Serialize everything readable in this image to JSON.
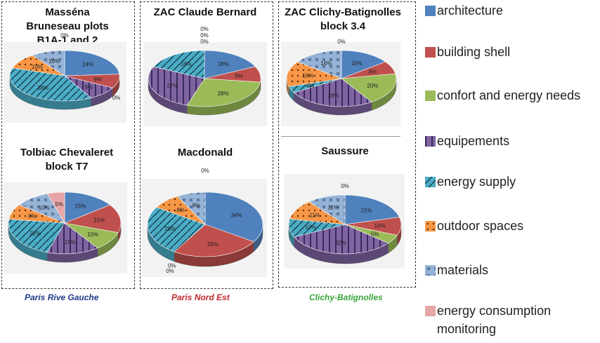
{
  "group_labels": [
    {
      "text": "Paris Rive Gauche",
      "color": "#1f3a8a"
    },
    {
      "text": "Paris Nord Est",
      "color": "#c0272d"
    },
    {
      "text": "Clichy-Batignolles",
      "color": "#3aa53a"
    }
  ],
  "legend": [
    {
      "label": "architecture",
      "color": "#4f81bd",
      "pattern": "solid"
    },
    {
      "label": " building shell",
      "color": "#c0504d",
      "pattern": "solid"
    },
    {
      "label": " confort and energy needs",
      "color": "#9bbb59",
      "pattern": "solid"
    },
    {
      "label": "equipements",
      "color": "#8064a2",
      "pattern": "vlines"
    },
    {
      "label": "energy supply",
      "color": "#4bacc6",
      "pattern": "slash"
    },
    {
      "label": "outdoor spaces",
      "color": "#f79646",
      "pattern": "dots"
    },
    {
      "label": "materials",
      "color": "#95b3d7",
      "pattern": "cross"
    },
    {
      "label": "energy consumption monitoring",
      "color": "#e6a6a6",
      "pattern": "solid"
    }
  ],
  "chart_data": [
    {
      "type": "pie",
      "title": "Masséna Bruneseau plots B1A-1 and 2",
      "categories": [
        "architecture",
        "building shell",
        "confort and energy needs",
        "equipements",
        "energy supply",
        "outdoor spaces",
        "materials",
        "energy consumption monitoring"
      ],
      "values": [
        24,
        9,
        0,
        9,
        38,
        10,
        10,
        0
      ],
      "labels": [
        "24%",
        "9%",
        "0%",
        "9%",
        "38%",
        "10%",
        "10%",
        "0%"
      ]
    },
    {
      "type": "pie",
      "title": "ZAC Claude Bernard",
      "categories": [
        "architecture",
        "building shell",
        "confort and energy needs",
        "equipements",
        "energy supply",
        "outdoor spaces",
        "materials",
        "energy consumption monitoring"
      ],
      "values": [
        18,
        9,
        28,
        27,
        18,
        0,
        0,
        0
      ],
      "labels": [
        "18%",
        "9%",
        "28%",
        "27%",
        "18%",
        "0%",
        "0%",
        "0%"
      ]
    },
    {
      "type": "pie",
      "title": "ZAC Clichy-Batignolles block 3.4",
      "categories": [
        "architecture",
        "building shell",
        "confort and energy needs",
        "equipements",
        "energy supply",
        "outdoor spaces",
        "materials",
        "energy consumption monitoring"
      ],
      "values": [
        16,
        8,
        20,
        28,
        4,
        16,
        16,
        0
      ],
      "labels": [
        "16%",
        "8%",
        "20%",
        "28%",
        "4%",
        "16%",
        "16%",
        "0%"
      ]
    },
    {
      "type": "pie",
      "title": "Tolbiac Chevaleret block T7",
      "categories": [
        "architecture",
        "building shell",
        "confort and energy needs",
        "equipements",
        "energy supply",
        "outdoor spaces",
        "materials",
        "energy consumption monitoring"
      ],
      "values": [
        15,
        15,
        10,
        15,
        22,
        8,
        10,
        5
      ],
      "labels": [
        "15%",
        "15%",
        "10%",
        "15%",
        "22%",
        "8%",
        "10%",
        "5%"
      ]
    },
    {
      "type": "pie",
      "title": "Macdonald",
      "categories": [
        "architecture",
        "building shell",
        "confort and energy needs",
        "equipements",
        "energy supply",
        "outdoor spaces",
        "materials",
        "energy consumption monitoring"
      ],
      "values": [
        34,
        25,
        0,
        0,
        25,
        8,
        8,
        0
      ],
      "labels": [
        "34%",
        "25%",
        "0%",
        "0%",
        "25%",
        "8%",
        "8%",
        "0%"
      ]
    },
    {
      "type": "pie",
      "title": "Saussure",
      "categories": [
        "architecture",
        "building shell",
        "confort and energy needs",
        "equipements",
        "energy supply",
        "outdoor spaces",
        "materials",
        "energy consumption monitoring"
      ],
      "values": [
        21,
        10,
        5,
        32,
        10,
        11,
        11,
        0
      ],
      "labels": [
        "21%",
        "10%",
        "5%",
        "32%",
        "10%",
        "11%",
        "11%",
        "0%"
      ]
    }
  ]
}
